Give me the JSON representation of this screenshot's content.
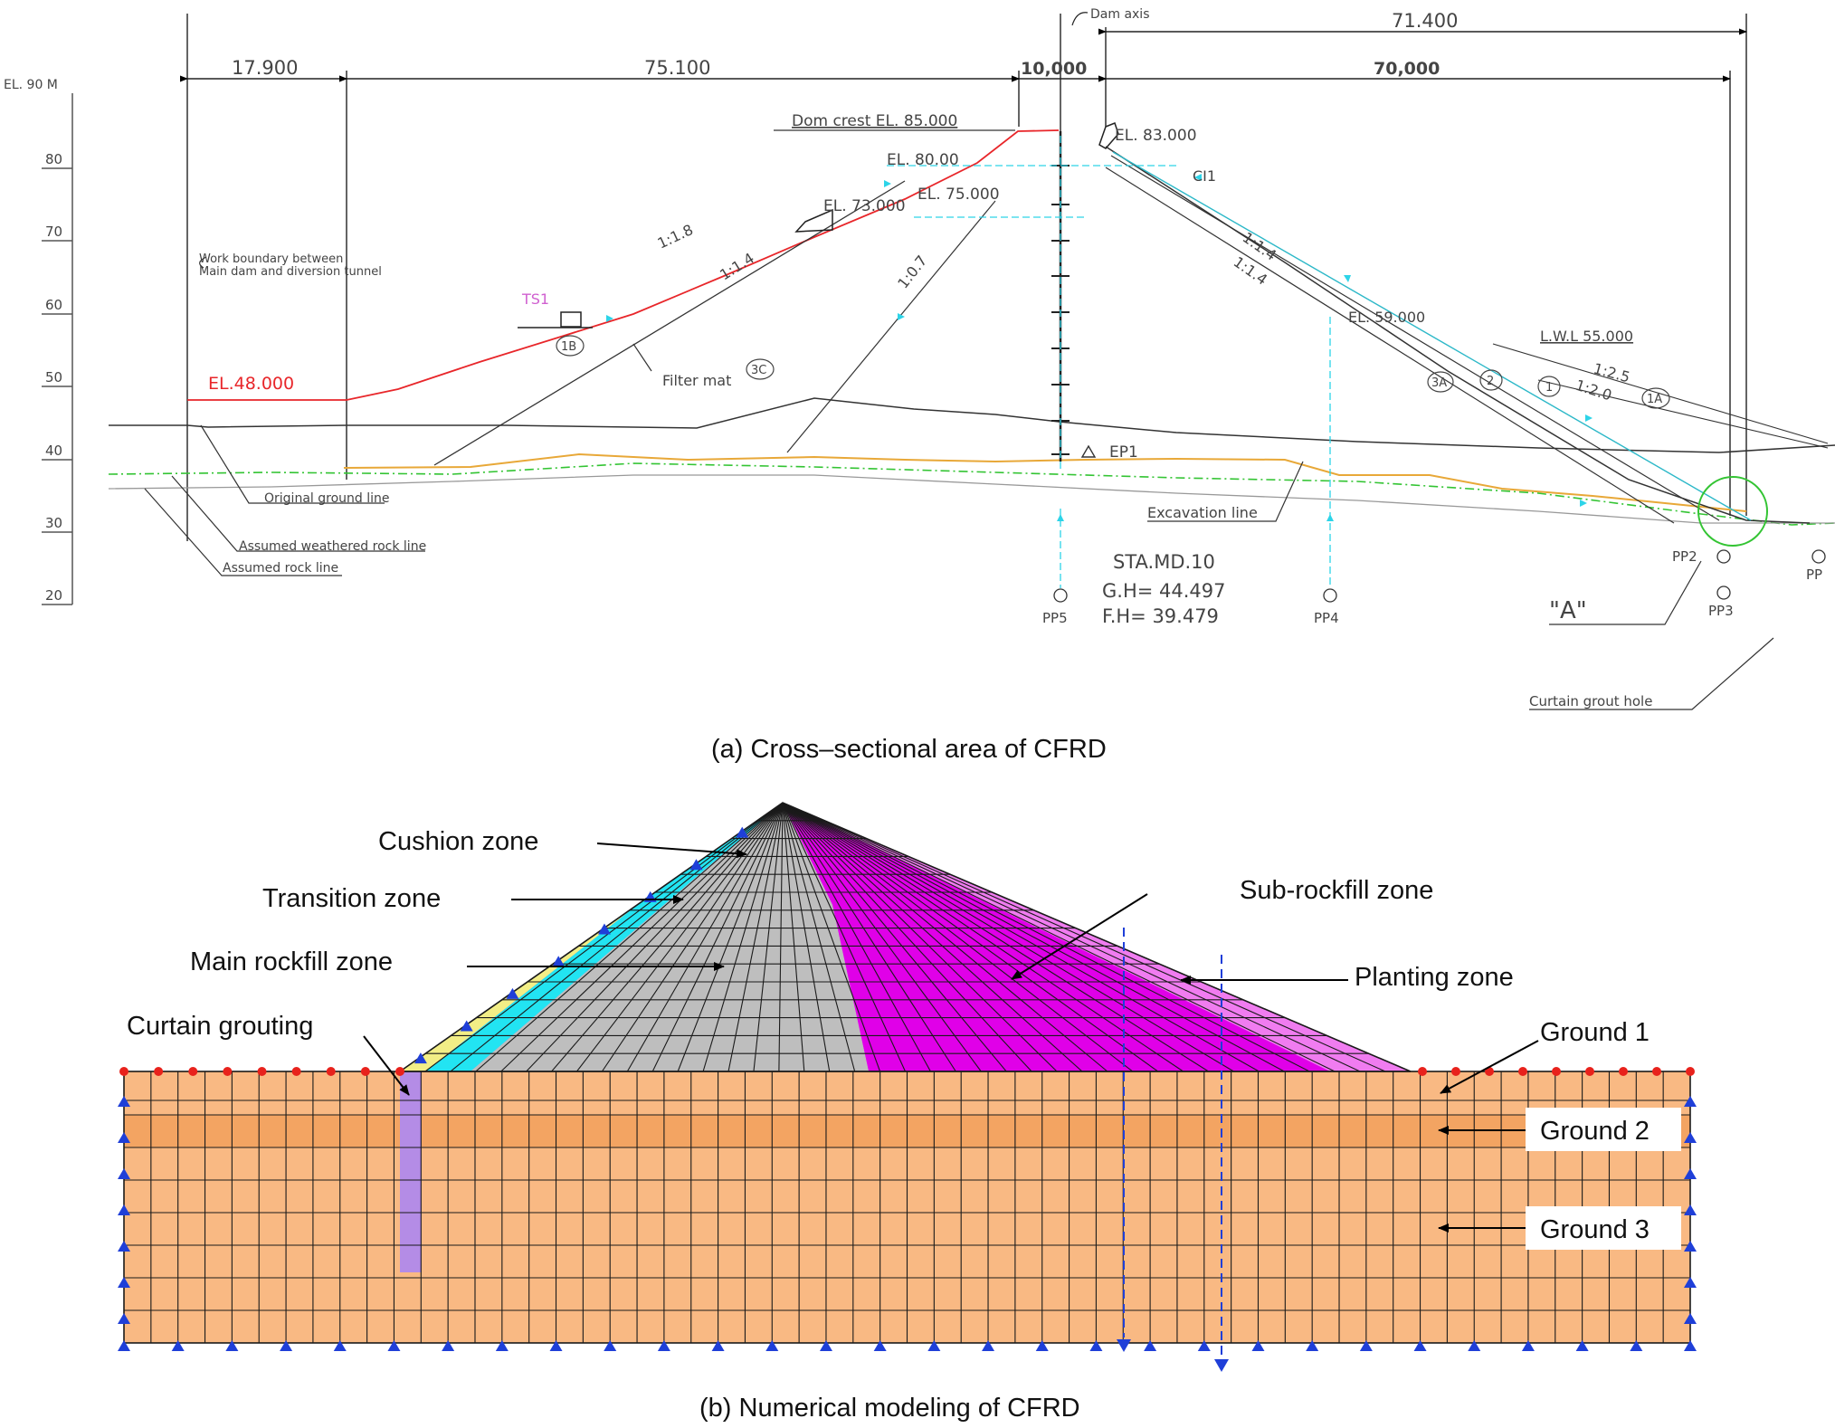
{
  "panel_a": {
    "caption": "(a) Cross–sectional area of CFRD",
    "elevation_axis": {
      "title": "EL. 90 M",
      "ticks": [
        "80",
        "70",
        "60",
        "50",
        "40",
        "30",
        "20"
      ]
    },
    "dimensions": {
      "d1": "17.900",
      "d2": "75.100",
      "d3": "10,000",
      "d4": "70,000",
      "d5": "71.400",
      "dam_axis": "Dam axis"
    },
    "levels": {
      "crest": "Dom crest EL. 85.000",
      "el80": "EL. 80.00",
      "el75": "EL. 75.000",
      "el73": "EL. 73.000",
      "el83": "EL. 83.000",
      "el59": "EL. 59.000",
      "lwl": "L.W.L 55.000",
      "el48": "EL.48.000"
    },
    "slopes": {
      "s1": "1:1.8",
      "s2": "1:1.4",
      "s3": "1:0.7",
      "s4": "1:1.4",
      "s5": "1:1.4",
      "s6": "1:2.5",
      "s7": "1:2.0"
    },
    "zones": {
      "z1b": "1B",
      "z3c": "3C",
      "z3a": "3A",
      "z2": "2",
      "z1": "1",
      "z1a": "1A"
    },
    "instruments": {
      "ts1": "TS1",
      "ci1": "CI1",
      "ep1": "EP1",
      "pp2": "PP2",
      "pp3": "PP3",
      "pp4": "PP4",
      "pp5": "PP5",
      "pp": "PP"
    },
    "notes": {
      "work_boundary_1": "Work boundary between",
      "work_boundary_2": "Main dam and diversion tunnel",
      "filter_mat": "Filter mat",
      "original_ground": "Original ground line",
      "weathered_rock": "Assumed weathered rock line",
      "rock_line": "Assumed rock line",
      "excavation": "Excavation line",
      "station": "STA.MD.10",
      "gh": "G.H= 44.497",
      "fh": "F.H= 39.479",
      "detail_a": "\"A\"",
      "curtain_hole": "Curtain grout hole"
    }
  },
  "panel_b": {
    "caption": "(b) Numerical modeling of CFRD",
    "labels": {
      "cushion": "Cushion zone",
      "transition": "Transition zone",
      "main_rockfill": "Main rockfill zone",
      "curtain": "Curtain grouting",
      "sub_rockfill": "Sub-rockfill zone",
      "planting": "Planting zone",
      "ground1": "Ground 1",
      "ground2": "Ground 2",
      "ground3": "Ground 3"
    },
    "colors": {
      "ground": "#F9B983",
      "ground2": "#F3A462",
      "cushion": "#F2EE86",
      "transition": "#22E4F2",
      "main_rockfill": "#BEBEBE",
      "sub_rockfill": "#E000E8",
      "planting": "#F07CF0",
      "curtain": "#B48CE6",
      "mesh": "#1a1a1a",
      "support": "#1F3FD8",
      "node": "#E8221C"
    }
  }
}
